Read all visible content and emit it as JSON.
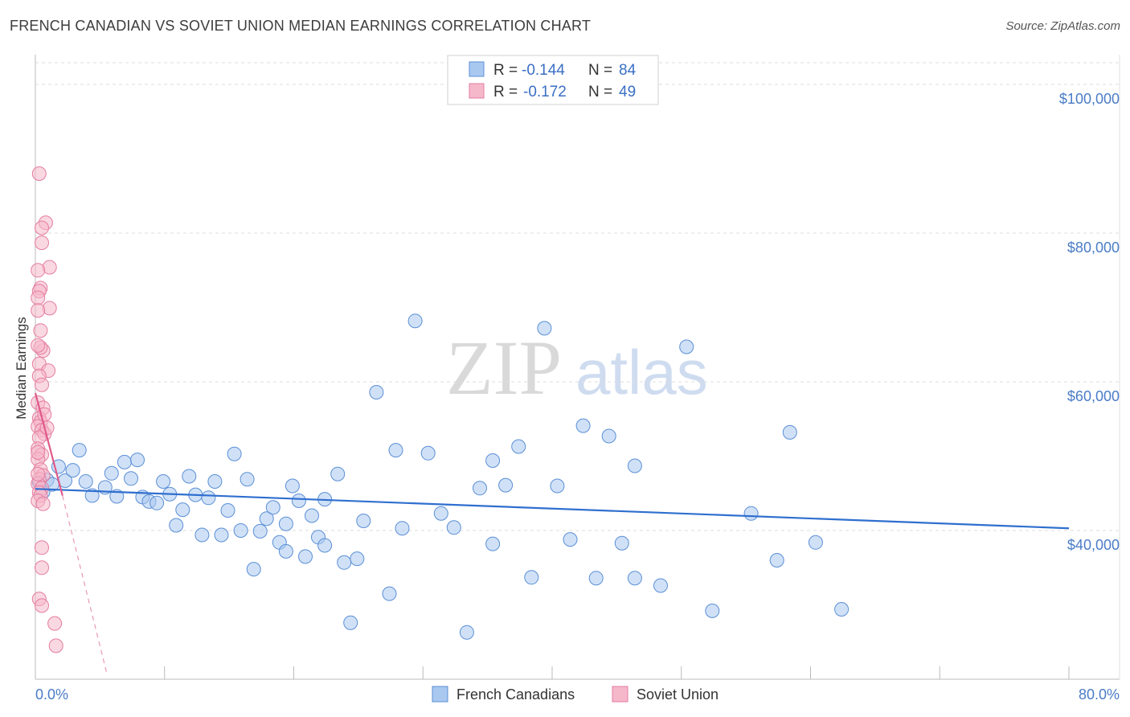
{
  "header": {
    "title": "FRENCH CANADIAN VS SOVIET UNION MEDIAN EARNINGS CORRELATION CHART",
    "source": "Source: ZipAtlas.com"
  },
  "watermark": {
    "part1": "ZIP",
    "part2": "atlas"
  },
  "legend": {
    "rows": [
      {
        "r_label": "R = ",
        "r_value": "-0.144",
        "n_label": "N = ",
        "n_value": "84",
        "color": "#a9c8f0"
      },
      {
        "r_label": "R = ",
        "r_value": "-0.172",
        "n_label": "N = ",
        "n_value": "49",
        "color": "#f5b8cb"
      }
    ]
  },
  "bottom_legend": [
    "French Canadians",
    "Soviet Union"
  ],
  "chart_data": {
    "type": "scatter",
    "title": "FRENCH CANADIAN VS SOVIET UNION MEDIAN EARNINGS CORRELATION CHART",
    "ylabel": "Median Earnings",
    "xlim": [
      0,
      80
    ],
    "ylim": [
      20000,
      104000
    ],
    "x_tick_labels": [
      "0.0%",
      "80.0%"
    ],
    "y_ticks": [
      {
        "value": 40000,
        "label": "$40,000"
      },
      {
        "value": 60000,
        "label": "$60,000"
      },
      {
        "value": 80000,
        "label": "$80,000"
      },
      {
        "value": 100000,
        "label": "$100,000"
      }
    ],
    "grid": true,
    "legend_position": "top-center",
    "series": [
      {
        "name": "French Canadians",
        "color": "#a9c8f0",
        "stroke": "#5b8fd6",
        "trend": {
          "x": [
            0,
            80
          ],
          "y": [
            45600,
            40300
          ],
          "color": "#2f6fcf"
        },
        "points": [
          [
            0.3,
            46500
          ],
          [
            0.6,
            45200
          ],
          [
            0.9,
            46800
          ],
          [
            1.3,
            46200
          ],
          [
            1.8,
            48600
          ],
          [
            2.3,
            46700
          ],
          [
            2.9,
            48100
          ],
          [
            3.4,
            50800
          ],
          [
            3.9,
            46600
          ],
          [
            4.4,
            44700
          ],
          [
            5.4,
            45800
          ],
          [
            5.9,
            47700
          ],
          [
            6.3,
            44600
          ],
          [
            6.9,
            49200
          ],
          [
            7.4,
            47000
          ],
          [
            7.9,
            49500
          ],
          [
            8.3,
            44500
          ],
          [
            8.8,
            43900
          ],
          [
            9.4,
            43700
          ],
          [
            9.9,
            46600
          ],
          [
            10.4,
            44900
          ],
          [
            10.9,
            40700
          ],
          [
            11.4,
            42800
          ],
          [
            11.9,
            47300
          ],
          [
            12.4,
            44800
          ],
          [
            12.9,
            39400
          ],
          [
            13.4,
            44400
          ],
          [
            13.9,
            46600
          ],
          [
            14.4,
            39400
          ],
          [
            14.9,
            42700
          ],
          [
            15.4,
            50300
          ],
          [
            15.9,
            40000
          ],
          [
            16.4,
            46900
          ],
          [
            16.9,
            34800
          ],
          [
            17.4,
            39900
          ],
          [
            17.9,
            41600
          ],
          [
            18.4,
            43100
          ],
          [
            18.9,
            38400
          ],
          [
            19.4,
            37200
          ],
          [
            19.9,
            46000
          ],
          [
            20.4,
            44000
          ],
          [
            20.9,
            36500
          ],
          [
            21.4,
            42000
          ],
          [
            21.9,
            39100
          ],
          [
            22.4,
            38000
          ],
          [
            23.4,
            47600
          ],
          [
            23.9,
            35700
          ],
          [
            24.9,
            36200
          ],
          [
            25.4,
            41300
          ],
          [
            26.4,
            58600
          ],
          [
            27.4,
            31500
          ],
          [
            27.9,
            50800
          ],
          [
            28.4,
            40300
          ],
          [
            29.4,
            68200
          ],
          [
            30.4,
            50400
          ],
          [
            31.4,
            42300
          ],
          [
            32.4,
            40400
          ],
          [
            33.4,
            26300
          ],
          [
            34.4,
            45700
          ],
          [
            35.4,
            49400
          ],
          [
            36.4,
            46100
          ],
          [
            37.4,
            51300
          ],
          [
            38.4,
            33700
          ],
          [
            39.4,
            67200
          ],
          [
            40.4,
            46000
          ],
          [
            41.4,
            38800
          ],
          [
            42.4,
            54100
          ],
          [
            43.4,
            33600
          ],
          [
            44.4,
            52700
          ],
          [
            46.4,
            48700
          ],
          [
            48.4,
            32600
          ],
          [
            50.4,
            64700
          ],
          [
            52.4,
            29200
          ],
          [
            55.4,
            42300
          ],
          [
            57.4,
            36000
          ],
          [
            58.4,
            53200
          ],
          [
            60.4,
            38400
          ],
          [
            62.4,
            29400
          ],
          [
            22.4,
            44200
          ],
          [
            19.4,
            40900
          ],
          [
            24.4,
            27600
          ],
          [
            35.4,
            38200
          ],
          [
            45.4,
            38300
          ],
          [
            46.4,
            33600
          ]
        ]
      },
      {
        "name": "Soviet Union",
        "color": "#f5b8cb",
        "stroke": "#e47da0",
        "trend": {
          "x": [
            0,
            2.1
          ],
          "y": [
            58500,
            44700
          ],
          "color": "#e05a8a"
        },
        "trend_extension": {
          "x": [
            2.1,
            5.5
          ],
          "y": [
            44700,
            21000
          ],
          "color": "#e89ab5"
        },
        "points": [
          [
            0.3,
            88000
          ],
          [
            0.8,
            81400
          ],
          [
            0.5,
            80700
          ],
          [
            0.5,
            78700
          ],
          [
            1.1,
            75400
          ],
          [
            0.2,
            75000
          ],
          [
            0.4,
            72600
          ],
          [
            0.3,
            72200
          ],
          [
            0.2,
            71300
          ],
          [
            1.1,
            69900
          ],
          [
            0.2,
            69600
          ],
          [
            0.4,
            66900
          ],
          [
            0.6,
            64200
          ],
          [
            0.4,
            64600
          ],
          [
            0.2,
            64900
          ],
          [
            0.3,
            62400
          ],
          [
            1.0,
            61500
          ],
          [
            0.3,
            60800
          ],
          [
            0.5,
            59600
          ],
          [
            0.2,
            57200
          ],
          [
            0.6,
            56500
          ],
          [
            0.3,
            55100
          ],
          [
            0.4,
            54600
          ],
          [
            0.2,
            54000
          ],
          [
            0.5,
            53500
          ],
          [
            0.7,
            53000
          ],
          [
            0.3,
            52500
          ],
          [
            0.2,
            51000
          ],
          [
            0.5,
            50200
          ],
          [
            0.2,
            49600
          ],
          [
            0.4,
            48200
          ],
          [
            0.6,
            47400
          ],
          [
            0.3,
            46900
          ],
          [
            0.2,
            46300
          ],
          [
            0.5,
            45700
          ],
          [
            0.3,
            45100
          ],
          [
            0.4,
            44700
          ],
          [
            0.2,
            44000
          ],
          [
            0.6,
            43600
          ],
          [
            0.5,
            37700
          ],
          [
            0.5,
            35000
          ],
          [
            0.3,
            30800
          ],
          [
            0.5,
            29900
          ],
          [
            1.5,
            27500
          ],
          [
            1.6,
            24500
          ],
          [
            0.2,
            50500
          ],
          [
            0.7,
            55600
          ],
          [
            0.9,
            53800
          ],
          [
            0.2,
            47600
          ]
        ]
      }
    ]
  }
}
